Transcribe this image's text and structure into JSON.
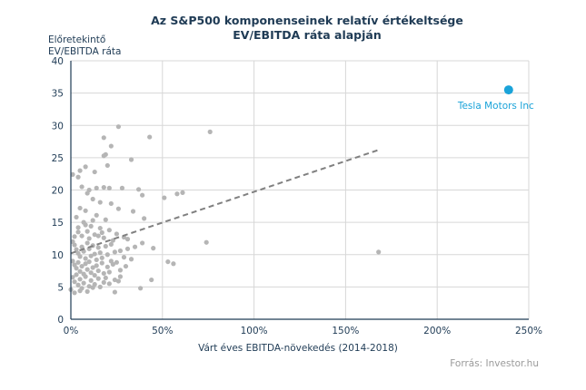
{
  "chart_data": {
    "type": "scatter",
    "title_line1": "Az S&P500 komponenseinek  relatív értékeltsége",
    "title_line2": "EV/EBITDA ráta alapján",
    "ylabel_line1": "Előretekintő",
    "ylabel_line2": "EV/EBITDA ráta",
    "xlabel": "Várt éves EBITDA-növekedés (2014-2018)",
    "source": "Forrás: Investor.hu",
    "xlim": [
      0,
      2.5
    ],
    "ylim": [
      0,
      40
    ],
    "x_ticks": [
      "0%",
      "50%",
      "100%",
      "150%",
      "200%",
      "250%"
    ],
    "y_ticks": [
      "0",
      "5",
      "10",
      "15",
      "20",
      "25",
      "30",
      "35",
      "40"
    ],
    "grid": true,
    "colors": {
      "points": "#b5b5b5",
      "highlight": "#1aa3d9",
      "trend": "#808080",
      "text": "#1f3b55"
    },
    "highlight": {
      "name": "Tesla Motors Inc",
      "x": 2.39,
      "y": 35.5
    },
    "trendline": {
      "x": [
        0.0,
        1.68
      ],
      "y": [
        10.2,
        26.2
      ]
    },
    "points": [
      [
        0.26,
        29.8
      ],
      [
        0.43,
        28.2
      ],
      [
        0.76,
        29.0
      ],
      [
        0.18,
        28.1
      ],
      [
        0.22,
        26.8
      ],
      [
        0.18,
        25.3
      ],
      [
        0.19,
        25.5
      ],
      [
        0.33,
        24.7
      ],
      [
        0.2,
        23.8
      ],
      [
        0.04,
        22.0
      ],
      [
        0.05,
        23.0
      ],
      [
        0.08,
        23.6
      ],
      [
        0.13,
        22.8
      ],
      [
        0.01,
        22.4
      ],
      [
        0.06,
        20.5
      ],
      [
        0.1,
        20.0
      ],
      [
        0.14,
        20.3
      ],
      [
        0.18,
        20.4
      ],
      [
        0.21,
        20.3
      ],
      [
        0.28,
        20.3
      ],
      [
        0.37,
        20.1
      ],
      [
        0.39,
        19.2
      ],
      [
        0.51,
        18.8
      ],
      [
        0.58,
        19.4
      ],
      [
        0.61,
        19.6
      ],
      [
        0.09,
        19.5
      ],
      [
        0.12,
        18.6
      ],
      [
        0.16,
        18.1
      ],
      [
        0.22,
        17.9
      ],
      [
        0.05,
        17.2
      ],
      [
        0.08,
        16.8
      ],
      [
        0.14,
        16.1
      ],
      [
        0.19,
        15.4
      ],
      [
        0.26,
        17.1
      ],
      [
        0.34,
        16.7
      ],
      [
        0.4,
        15.6
      ],
      [
        0.03,
        15.8
      ],
      [
        0.07,
        15.0
      ],
      [
        0.11,
        14.4
      ],
      [
        0.16,
        14.1
      ],
      [
        0.21,
        13.8
      ],
      [
        0.25,
        13.2
      ],
      [
        0.29,
        12.7
      ],
      [
        0.04,
        14.2
      ],
      [
        0.09,
        13.6
      ],
      [
        0.13,
        13.1
      ],
      [
        0.18,
        12.6
      ],
      [
        0.23,
        12.2
      ],
      [
        0.31,
        12.4
      ],
      [
        0.35,
        11.2
      ],
      [
        0.39,
        11.8
      ],
      [
        0.45,
        11.0
      ],
      [
        0.53,
        8.9
      ],
      [
        0.56,
        8.6
      ],
      [
        0.74,
        11.9
      ],
      [
        1.68,
        10.4
      ],
      [
        0.27,
        6.6
      ],
      [
        0.38,
        4.8
      ],
      [
        0.44,
        6.1
      ],
      [
        0.24,
        4.2
      ],
      [
        0.01,
        12.0
      ],
      [
        0.02,
        11.5
      ],
      [
        0.03,
        10.8
      ],
      [
        0.04,
        10.2
      ],
      [
        0.05,
        9.7
      ],
      [
        0.06,
        11.2
      ],
      [
        0.07,
        10.5
      ],
      [
        0.08,
        9.4
      ],
      [
        0.09,
        11.8
      ],
      [
        0.1,
        10.9
      ],
      [
        0.11,
        9.8
      ],
      [
        0.12,
        11.4
      ],
      [
        0.13,
        10.1
      ],
      [
        0.14,
        9.2
      ],
      [
        0.15,
        11.1
      ],
      [
        0.16,
        10.3
      ],
      [
        0.17,
        9.5
      ],
      [
        0.19,
        11.3
      ],
      [
        0.2,
        10.0
      ],
      [
        0.22,
        9.0
      ],
      [
        0.01,
        9.0
      ],
      [
        0.02,
        8.4
      ],
      [
        0.03,
        7.9
      ],
      [
        0.04,
        8.8
      ],
      [
        0.05,
        7.4
      ],
      [
        0.06,
        8.2
      ],
      [
        0.07,
        7.0
      ],
      [
        0.08,
        8.6
      ],
      [
        0.09,
        7.7
      ],
      [
        0.1,
        8.9
      ],
      [
        0.11,
        7.2
      ],
      [
        0.12,
        8.0
      ],
      [
        0.13,
        6.8
      ],
      [
        0.14,
        8.3
      ],
      [
        0.15,
        7.5
      ],
      [
        0.17,
        8.7
      ],
      [
        0.18,
        7.1
      ],
      [
        0.2,
        8.1
      ],
      [
        0.21,
        7.3
      ],
      [
        0.23,
        8.5
      ],
      [
        0.01,
        6.5
      ],
      [
        0.02,
        5.8
      ],
      [
        0.03,
        6.9
      ],
      [
        0.04,
        5.3
      ],
      [
        0.05,
        6.2
      ],
      [
        0.06,
        4.8
      ],
      [
        0.07,
        5.6
      ],
      [
        0.08,
        6.6
      ],
      [
        0.09,
        4.3
      ],
      [
        0.1,
        5.1
      ],
      [
        0.11,
        6.0
      ],
      [
        0.12,
        4.9
      ],
      [
        0.13,
        5.4
      ],
      [
        0.15,
        6.3
      ],
      [
        0.16,
        5.0
      ],
      [
        0.18,
        5.7
      ],
      [
        0.19,
        6.4
      ],
      [
        0.21,
        5.5
      ],
      [
        0.24,
        6.1
      ],
      [
        0.26,
        5.9
      ],
      [
        0.0,
        4.6
      ],
      [
        0.02,
        4.1
      ],
      [
        0.05,
        4.4
      ],
      [
        0.02,
        12.8
      ],
      [
        0.06,
        12.9
      ],
      [
        0.1,
        12.5
      ],
      [
        0.15,
        12.9
      ],
      [
        0.04,
        13.5
      ],
      [
        0.08,
        14.6
      ],
      [
        0.12,
        15.3
      ],
      [
        0.17,
        13.4
      ],
      [
        0.27,
        10.6
      ],
      [
        0.29,
        9.6
      ],
      [
        0.31,
        10.9
      ],
      [
        0.33,
        9.3
      ],
      [
        0.3,
        8.2
      ],
      [
        0.25,
        8.8
      ],
      [
        0.27,
        7.6
      ],
      [
        0.24,
        10.4
      ],
      [
        0.22,
        11.6
      ]
    ]
  }
}
